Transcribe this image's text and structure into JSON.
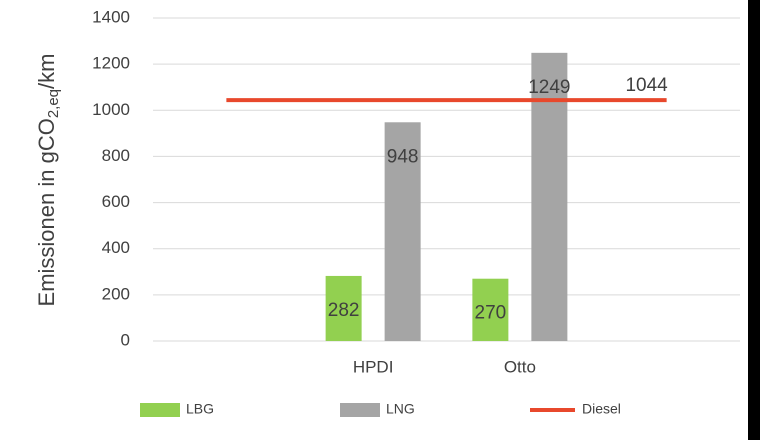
{
  "chart_data": {
    "type": "bar",
    "ylabel": [
      "Emissionen in gCO",
      "2,eq",
      "/km"
    ],
    "categories": [
      null,
      "HPDI",
      "Otto",
      null
    ],
    "series": [
      {
        "name": "LBG",
        "color": "#92d050",
        "values": [
          null,
          282,
          270,
          null
        ]
      },
      {
        "name": "LNG",
        "color": "#a5a5a5",
        "values": [
          null,
          948,
          1249,
          null
        ]
      },
      {
        "name": "Diesel",
        "type": "line",
        "color": "#e8482c",
        "values": [
          1044,
          1044,
          1044,
          1044
        ]
      }
    ],
    "ylim": [
      0,
      1400
    ],
    "yticks": [
      0,
      200,
      400,
      600,
      800,
      1000,
      1200,
      1400
    ],
    "grid": true,
    "legend": "bottom"
  }
}
